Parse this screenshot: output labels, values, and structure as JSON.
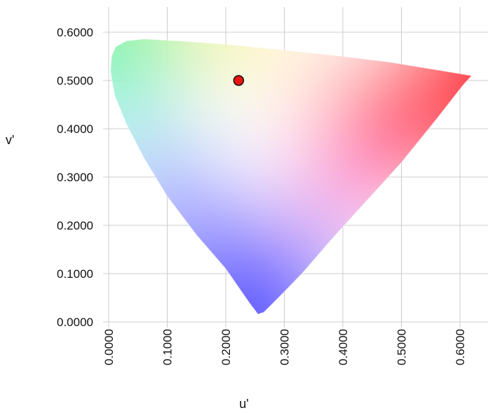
{
  "chart_data": {
    "type": "scatter",
    "title": "",
    "xlabel": "u'",
    "ylabel": "v'",
    "xlim": [
      0.0,
      0.63
    ],
    "ylim": [
      0.0,
      0.65
    ],
    "grid": true,
    "x_ticks": [
      "0.0000",
      "0.1000",
      "0.2000",
      "0.3000",
      "0.4000",
      "0.5000",
      "0.6000"
    ],
    "y_ticks": [
      "0.0000",
      "0.1000",
      "0.2000",
      "0.3000",
      "0.4000",
      "0.5000",
      "0.6000"
    ],
    "x_tick_values": [
      0.0,
      0.1,
      0.2,
      0.3,
      0.4,
      0.5,
      0.6
    ],
    "y_tick_values": [
      0.0,
      0.1,
      0.2,
      0.3,
      0.4,
      0.5,
      0.6
    ],
    "gamut_boundary": [
      [
        0.62,
        0.51
      ],
      [
        0.56,
        0.522
      ],
      [
        0.48,
        0.538
      ],
      [
        0.4,
        0.55
      ],
      [
        0.3,
        0.563
      ],
      [
        0.2,
        0.575
      ],
      [
        0.12,
        0.582
      ],
      [
        0.06,
        0.586
      ],
      [
        0.03,
        0.582
      ],
      [
        0.012,
        0.57
      ],
      [
        0.005,
        0.55
      ],
      [
        0.003,
        0.52
      ],
      [
        0.01,
        0.47
      ],
      [
        0.03,
        0.41
      ],
      [
        0.06,
        0.34
      ],
      [
        0.1,
        0.26
      ],
      [
        0.15,
        0.18
      ],
      [
        0.2,
        0.11
      ],
      [
        0.24,
        0.04
      ],
      [
        0.255,
        0.016
      ],
      [
        0.265,
        0.02
      ],
      [
        0.29,
        0.05
      ],
      [
        0.33,
        0.1
      ],
      [
        0.38,
        0.17
      ],
      [
        0.44,
        0.25
      ],
      [
        0.5,
        0.33
      ],
      [
        0.56,
        0.42
      ],
      [
        0.605,
        0.49
      ]
    ],
    "points": [
      {
        "u": 0.222,
        "v": 0.5,
        "color": "#e8160f"
      }
    ],
    "colors": {
      "red": "#ff1a30",
      "green": "#5cf067",
      "blue": "#5a55ff",
      "yellow": "#fff07a",
      "cyan": "#7ff2e8",
      "magenta": "#ff7de8",
      "white": "#ffffff",
      "marker": "#e8160f",
      "grid": "#cccccc"
    }
  }
}
